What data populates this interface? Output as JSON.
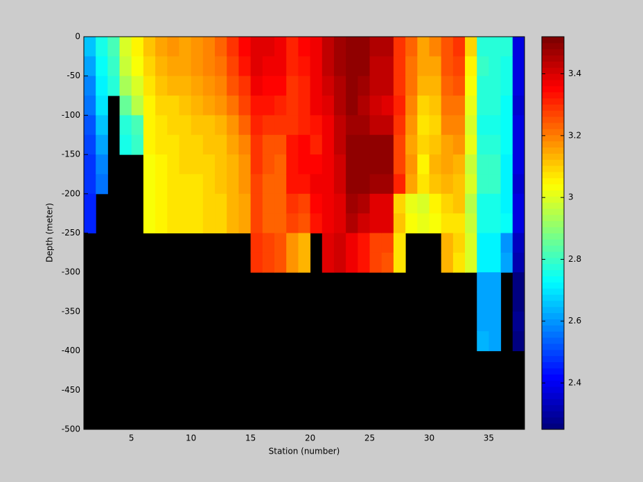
{
  "chart_data": {
    "type": "heatmap",
    "xlabel": "Station (number)",
    "ylabel": "Depth (meter)",
    "colormap": "jet",
    "x_edges": [
      1,
      2,
      3,
      4,
      5,
      6,
      7,
      8,
      9,
      10,
      11,
      12,
      13,
      14,
      15,
      16,
      17,
      18,
      19,
      20,
      21,
      22,
      23,
      24,
      25,
      26,
      27,
      28,
      29,
      30,
      31,
      32,
      33,
      34,
      35,
      36,
      37,
      38
    ],
    "y_edges": [
      0,
      -25,
      -50,
      -75,
      -100,
      -125,
      -150,
      -175,
      -200,
      -225,
      -250,
      -275,
      -300,
      -325,
      -350,
      -375,
      -400
    ],
    "z": [
      [
        2.66,
        2.62,
        2.58,
        2.55,
        2.52,
        2.5,
        2.48,
        2.47,
        2.46,
        2.46
      ],
      [
        2.75,
        2.74,
        2.72,
        2.7,
        2.66,
        2.62,
        2.58,
        2.55
      ],
      [
        2.82,
        2.8,
        2.78
      ],
      [
        3.0,
        2.98,
        2.93,
        2.85,
        2.78,
        2.76
      ],
      [
        3.05,
        3.03,
        3.0,
        2.95,
        2.82,
        2.8
      ],
      [
        3.12,
        3.1,
        3.08,
        3.06,
        3.05,
        3.05,
        3.04,
        3.04,
        3.04,
        3.04
      ],
      [
        3.15,
        3.14,
        3.12,
        3.1,
        3.08,
        3.07,
        3.06,
        3.06,
        3.06,
        3.06
      ],
      [
        3.18,
        3.16,
        3.13,
        3.1,
        3.09,
        3.08,
        3.08,
        3.08,
        3.07,
        3.07
      ],
      [
        3.16,
        3.15,
        3.14,
        3.12,
        3.1,
        3.09,
        3.09,
        3.08,
        3.07,
        3.07
      ],
      [
        3.18,
        3.17,
        3.16,
        3.13,
        3.12,
        3.1,
        3.1,
        3.08,
        3.08,
        3.08
      ],
      [
        3.2,
        3.2,
        3.18,
        3.15,
        3.12,
        3.11,
        3.1,
        3.1,
        3.09,
        3.09
      ],
      [
        3.24,
        3.22,
        3.2,
        3.18,
        3.14,
        3.12,
        3.11,
        3.11,
        3.1,
        3.1
      ],
      [
        3.3,
        3.28,
        3.25,
        3.22,
        3.18,
        3.15,
        3.14,
        3.14,
        3.13,
        3.13
      ],
      [
        3.36,
        3.34,
        3.3,
        3.28,
        3.24,
        3.2,
        3.18,
        3.18,
        3.16,
        3.16
      ],
      [
        3.4,
        3.39,
        3.37,
        3.33,
        3.31,
        3.3,
        3.29,
        3.28,
        3.27,
        3.27,
        3.3,
        3.3
      ],
      [
        3.4,
        3.38,
        3.36,
        3.33,
        3.3,
        3.26,
        3.25,
        3.24,
        3.23,
        3.23,
        3.28,
        3.28
      ],
      [
        3.38,
        3.37,
        3.36,
        3.32,
        3.29,
        3.26,
        3.24,
        3.24,
        3.23,
        3.23,
        3.26,
        3.26
      ],
      [
        3.32,
        3.32,
        3.3,
        3.3,
        3.3,
        3.33,
        3.33,
        3.33,
        3.3,
        3.28,
        3.18,
        3.18
      ],
      [
        3.36,
        3.34,
        3.32,
        3.31,
        3.32,
        3.35,
        3.35,
        3.34,
        3.28,
        3.26,
        3.14,
        3.14
      ],
      [
        3.38,
        3.38,
        3.38,
        3.38,
        3.33,
        3.32,
        3.36,
        3.37,
        3.36,
        3.34
      ],
      [
        3.44,
        3.44,
        3.42,
        3.4,
        3.38,
        3.38,
        3.38,
        3.38,
        3.38,
        3.38,
        3.4,
        3.4
      ],
      [
        3.48,
        3.47,
        3.46,
        3.46,
        3.44,
        3.43,
        3.42,
        3.41,
        3.39,
        3.4,
        3.42,
        3.42
      ],
      [
        3.5,
        3.5,
        3.5,
        3.49,
        3.48,
        3.5,
        3.5,
        3.5,
        3.48,
        3.46,
        3.38,
        3.38
      ],
      [
        3.5,
        3.5,
        3.48,
        3.46,
        3.48,
        3.5,
        3.5,
        3.5,
        3.46,
        3.42,
        3.34,
        3.34
      ],
      [
        3.45,
        3.44,
        3.44,
        3.42,
        3.44,
        3.49,
        3.49,
        3.48,
        3.4,
        3.4,
        3.27,
        3.27
      ],
      [
        3.45,
        3.44,
        3.44,
        3.4,
        3.44,
        3.49,
        3.49,
        3.48,
        3.4,
        3.4,
        3.27,
        3.26
      ],
      [
        3.3,
        3.29,
        3.3,
        3.31,
        3.3,
        3.28,
        3.28,
        3.32,
        3.1,
        3.11,
        3.08,
        3.07
      ],
      [
        3.24,
        3.22,
        3.21,
        3.2,
        3.18,
        3.16,
        3.17,
        3.15,
        3.02,
        3.03
      ],
      [
        3.16,
        3.15,
        3.14,
        3.1,
        3.08,
        3.09,
        3.06,
        3.07,
        3.0,
        3.01
      ],
      [
        3.2,
        3.16,
        3.14,
        3.12,
        3.1,
        3.12,
        3.13,
        3.12,
        3.05,
        3.04
      ],
      [
        3.26,
        3.25,
        3.24,
        3.22,
        3.2,
        3.16,
        3.15,
        3.14,
        3.1,
        3.08,
        3.14,
        3.13
      ],
      [
        3.3,
        3.27,
        3.25,
        3.22,
        3.2,
        3.17,
        3.14,
        3.12,
        3.11,
        3.08,
        3.09,
        3.08
      ],
      [
        3.1,
        3.06,
        3.04,
        3.02,
        3.0,
        3.01,
        2.98,
        2.99,
        2.96,
        2.97,
        3.0,
        2.99
      ],
      [
        2.78,
        2.79,
        2.77,
        2.77,
        2.76,
        2.77,
        2.8,
        2.79,
        2.76,
        2.75,
        2.72,
        2.71,
        2.62,
        2.61,
        2.62,
        2.63
      ],
      [
        2.78,
        2.78,
        2.78,
        2.77,
        2.76,
        2.77,
        2.8,
        2.79,
        2.76,
        2.76,
        2.72,
        2.72,
        2.62,
        2.62,
        2.62,
        2.62
      ],
      [
        2.78,
        2.76,
        2.75,
        2.74,
        2.74,
        2.73,
        2.72,
        2.71,
        2.72,
        2.73,
        2.6,
        2.61
      ],
      [
        2.37,
        2.38,
        2.37,
        2.36,
        2.37,
        2.38,
        2.37,
        2.36,
        2.37,
        2.37,
        2.33,
        2.32,
        2.26,
        2.26,
        2.27,
        2.26
      ]
    ],
    "xlim": [
      1,
      38
    ],
    "ylim": [
      -500,
      0
    ],
    "xticks": [
      5,
      10,
      15,
      20,
      25,
      30,
      35
    ],
    "yticks": [
      0,
      -50,
      -100,
      -150,
      -200,
      -250,
      -300,
      -350,
      -400,
      -450,
      -500
    ],
    "clim": [
      2.25,
      3.52
    ],
    "cticks": [
      2.4,
      2.6,
      2.8,
      3,
      3.2,
      3.4
    ]
  }
}
